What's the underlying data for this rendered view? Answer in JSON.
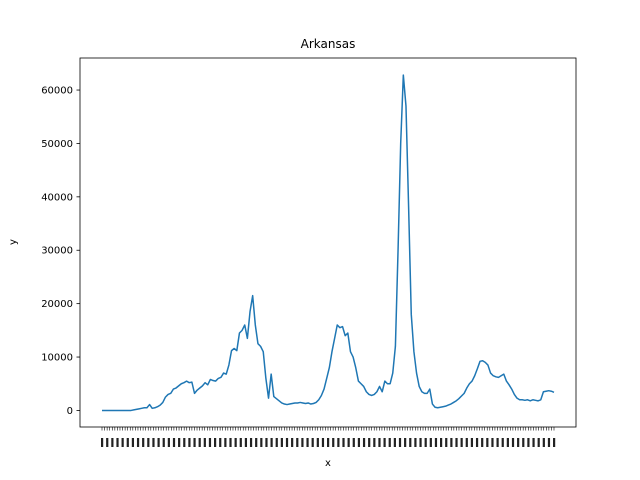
{
  "chart_data": {
    "type": "line",
    "title": "Arkansas",
    "xlabel": "x",
    "ylabel": "y",
    "ylim": [
      -3100,
      66000
    ],
    "yticks": [
      0,
      10000,
      20000,
      30000,
      40000,
      50000,
      60000
    ],
    "ytick_labels": [
      "0",
      "10000",
      "20000",
      "30000",
      "40000",
      "50000",
      "60000"
    ],
    "grid": false,
    "line_color": "#1f77b4",
    "series": [
      {
        "values": [
          0,
          0,
          0,
          0,
          0,
          0,
          0,
          0,
          0,
          0,
          0,
          0,
          100,
          200,
          300,
          400,
          500,
          500,
          1100,
          400,
          500,
          700,
          1000,
          1500,
          2500,
          3000,
          3200,
          4000,
          4200,
          4600,
          5000,
          5200,
          5500,
          5200,
          5300,
          3200,
          3800,
          4200,
          4600,
          5200,
          4800,
          5800,
          5600,
          5500,
          6000,
          6200,
          7000,
          6800,
          8500,
          11200,
          11600,
          11200,
          14500,
          15000,
          16000,
          13500,
          18500,
          21500,
          16000,
          12500,
          12000,
          11000,
          6000,
          2300,
          6800,
          2600,
          2200,
          1800,
          1400,
          1200,
          1100,
          1200,
          1300,
          1400,
          1400,
          1500,
          1400,
          1300,
          1400,
          1200,
          1300,
          1500,
          2000,
          2800,
          4000,
          6000,
          8000,
          11000,
          13500,
          16000,
          15500,
          15700,
          14000,
          14500,
          11000,
          10000,
          8000,
          5500,
          5000,
          4500,
          3500,
          3000,
          2800,
          3000,
          3500,
          4500,
          3500,
          5500,
          5000,
          5000,
          7000,
          12000,
          30000,
          50000,
          62800,
          57000,
          38000,
          18000,
          11000,
          7000,
          4500,
          3500,
          3200,
          3200,
          4000,
          1200,
          600,
          500,
          600,
          700,
          800,
          1000,
          1200,
          1500,
          1800,
          2200,
          2700,
          3200,
          4200,
          5000,
          5500,
          6500,
          7800,
          9200,
          9300,
          9000,
          8500,
          7000,
          6500,
          6300,
          6200,
          6500,
          6800,
          5500,
          4800,
          4000,
          3000,
          2300,
          2000,
          2000,
          1900,
          2000,
          1800,
          2000,
          1900,
          1800,
          2000,
          3500,
          3600,
          3700,
          3600,
          3400
        ]
      }
    ],
    "tick_count": 177
  }
}
